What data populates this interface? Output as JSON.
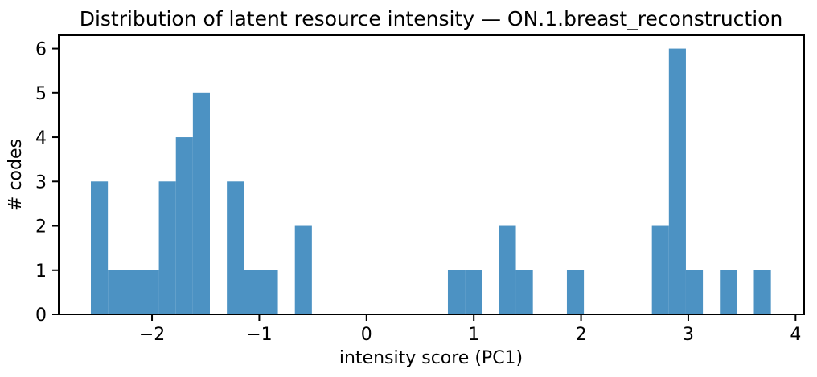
{
  "chart_data": {
    "type": "bar",
    "subtype": "histogram",
    "title": "Distribution of latent resource intensity — ON.1.breast_reconstruction",
    "xlabel": "intensity score (PC1)",
    "ylabel": "# codes",
    "bar_color": "#4c92c3",
    "axis_color": "#000000",
    "background_color": "#ffffff",
    "bin_start": -2.57,
    "bin_width": 0.1585,
    "counts": [
      3,
      1,
      1,
      1,
      3,
      4,
      5,
      0,
      3,
      1,
      1,
      0,
      2,
      0,
      0,
      0,
      0,
      0,
      0,
      0,
      0,
      1,
      1,
      0,
      2,
      1,
      0,
      0,
      1,
      0,
      0,
      0,
      0,
      2,
      6,
      1,
      0,
      1,
      0,
      1
    ],
    "xlim": [
      -2.87,
      4.08
    ],
    "ylim": [
      0,
      6.3
    ],
    "grid": false,
    "legend_position": "none",
    "xticks": [
      {
        "value": -2,
        "label": "−2"
      },
      {
        "value": -1,
        "label": "−1"
      },
      {
        "value": 0,
        "label": "0"
      },
      {
        "value": 1,
        "label": "1"
      },
      {
        "value": 2,
        "label": "2"
      },
      {
        "value": 3,
        "label": "3"
      },
      {
        "value": 4,
        "label": "4"
      }
    ],
    "yticks": [
      {
        "value": 0,
        "label": "0"
      },
      {
        "value": 1,
        "label": "1"
      },
      {
        "value": 2,
        "label": "2"
      },
      {
        "value": 3,
        "label": "3"
      },
      {
        "value": 4,
        "label": "4"
      },
      {
        "value": 5,
        "label": "5"
      },
      {
        "value": 6,
        "label": "6"
      }
    ]
  }
}
